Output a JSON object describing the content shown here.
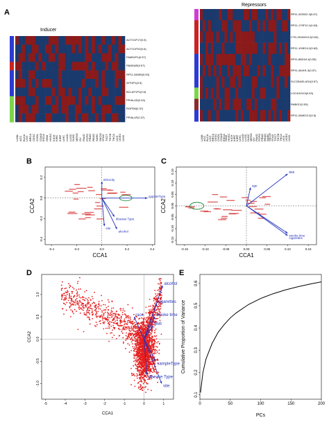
{
  "figure": {
    "panels": {
      "A": {
        "letter": "A",
        "inducer": {
          "title": "Inducer",
          "rows": [
            "ACTG1P17(0.5)",
            "ACTG1P22(0.6)",
            "FAM91P1(0.57)",
            "PANDAR(0.57)",
            "RP11-346E6(0.53)",
            "ATF4P1(0.5)",
            "BCLAF1P1(0.5)",
            "PPIAL4D(0.43)",
            "RGPD6(0.37)",
            "PPIAL4F(0.37)"
          ],
          "group_colors": [
            "#2b3bd4",
            "#2b3bd4",
            "#2b3bd4",
            "#cc2222",
            "#2b3bd4",
            "#2b3bd4",
            "#2b3bd4",
            "#7bd64a",
            "#7bd64a",
            "#7bd64a"
          ]
        },
        "repressor": {
          "title": "Repressors",
          "rows": [
            "RP11-325022.3(0.67)",
            "RP11-179F10.1(0.63)",
            "CTD-2515H24.2(0.63)",
            "RP11-109E24.2(0.63)",
            "RP11-86D18.1(0.53)",
            "RP11-464H1.3(0.57)",
            "SLC25A30-AS1(0.57)",
            "LOC401913(0.53)",
            "RABGC(0.53)",
            "RP11-266E23.2(0.5)"
          ],
          "group_colors": [
            "#d23bd4",
            "#cc2222",
            "#cc2222",
            "#cc2222",
            "#2b3bd4",
            "#2b3bd4",
            "#2b3bd4",
            "#7bd64a",
            "#8c2a2a",
            "#2b3bd4"
          ]
        },
        "cancer_types": [
          "LAML",
          "ACC",
          "BLCA",
          "LGG",
          "BRCA",
          "CESC",
          "CHOL",
          "COAD",
          "ESCA",
          "GBM",
          "HNSC",
          "KICH",
          "KIRC",
          "KIRP",
          "LIHC",
          "LUAD",
          "LUSC",
          "DLBC",
          "MESO",
          "OV",
          "PAAD",
          "PCPG",
          "PRAD",
          "READ",
          "SARC",
          "SKCM",
          "STAD",
          "TGCT",
          "THYM",
          "THCA",
          "UCS",
          "UCEC",
          "UVM"
        ],
        "heatmap_colors": {
          "high": "#8b1a1a",
          "low": "#1a3a6e"
        }
      },
      "B": {
        "letter": "B",
        "xlabel": "CCA1",
        "ylabel": "CCA2",
        "x_ticks": [
          "-0.4",
          "-0.2",
          "0.0",
          "0.2",
          "0.4"
        ],
        "y_ticks": [
          "-0.4",
          "-0.2",
          "0.0",
          "0.2"
        ],
        "vectors": [
          {
            "name": "ethnicity",
            "x": 0.0,
            "y": 0.16
          },
          {
            "name": "sampleType",
            "x": 0.36,
            "y": 0.0
          },
          {
            "name": "disease Type",
            "x": 0.1,
            "y": -0.18
          },
          {
            "name": "site",
            "x": 0.02,
            "y": -0.27
          },
          {
            "name": "alcohol",
            "x": 0.12,
            "y": -0.3
          }
        ]
      },
      "C": {
        "letter": "C",
        "xlabel": "CCA1",
        "ylabel": "CCA2",
        "x_ticks": [
          "-0.15",
          "-0.10",
          "-0.05",
          "0.00",
          "0.05",
          "0.10",
          "0.15"
        ],
        "y_ticks": [
          "-0.15",
          "-0.10",
          "-0.05",
          "0.00",
          "0.05",
          "0.10",
          "0.15"
        ],
        "vectors": [
          {
            "name": "BMI",
            "x": 0.1,
            "y": 0.14
          },
          {
            "name": "age",
            "x": 0.01,
            "y": 0.08
          },
          {
            "name": "smoke time",
            "x": 0.1,
            "y": -0.12
          },
          {
            "name": "cigarettes",
            "x": 0.1,
            "y": -0.13
          }
        ]
      },
      "D": {
        "letter": "D",
        "xlabel": "CCA1",
        "ylabel": "CCA2",
        "x_ticks": [
          "-5",
          "-4",
          "-3",
          "-2",
          "-1",
          "0",
          "1"
        ],
        "y_ticks": [
          "-1.0",
          "-0.5",
          "0.0",
          "0.5",
          "1.0"
        ],
        "vectors": [
          {
            "name": "alcohol",
            "x": 0.95,
            "y": 1.2
          },
          {
            "name": "cigarettes",
            "x": 0.65,
            "y": 0.8
          },
          {
            "name": "race",
            "x": -0.5,
            "y": 0.5
          },
          {
            "name": "smoke time",
            "x": 0.55,
            "y": 0.5
          },
          {
            "name": "BMI",
            "x": 0.45,
            "y": 0.3
          },
          {
            "name": "sampleType",
            "x": 0.6,
            "y": -0.5
          },
          {
            "name": "disease Type",
            "x": 0.15,
            "y": -0.8
          },
          {
            "name": "site",
            "x": 0.9,
            "y": -1.0
          }
        ]
      },
      "E": {
        "letter": "E",
        "xlabel": "PCs",
        "ylabel": "Cumulative Proportion of Variance",
        "x_ticks": [
          "0",
          "50",
          "100",
          "150",
          "200"
        ],
        "y_ticks": [
          "0.1",
          "0.2",
          "0.3",
          "0.4",
          "0.5",
          "0.6"
        ],
        "xlim": [
          0,
          200
        ],
        "ylim": [
          0.08,
          0.64
        ]
      }
    }
  },
  "chart_data": [
    {
      "type": "heatmap",
      "title": "Inducer",
      "rows": [
        "ACTG1P17(0.5)",
        "ACTG1P22(0.6)",
        "FAM91P1(0.57)",
        "PANDAR(0.57)",
        "RP11-346E6(0.53)",
        "ATF4P1(0.5)",
        "BCLAF1P1(0.5)",
        "PPIAL4D(0.43)",
        "RGPD6(0.37)",
        "PPIAL4F(0.37)"
      ],
      "columns": [
        "LAML",
        "ACC",
        "BLCA",
        "LGG",
        "BRCA",
        "CESC",
        "CHOL",
        "COAD",
        "ESCA",
        "GBM",
        "HNSC",
        "KICH",
        "KIRC",
        "KIRP",
        "LIHC",
        "LUAD",
        "LUSC",
        "DLBC",
        "MESO",
        "OV",
        "PAAD",
        "PCPG",
        "PRAD",
        "READ",
        "SARC",
        "SKCM",
        "STAD",
        "TGCT",
        "THYM",
        "THCA",
        "UCS",
        "UCEC",
        "UVM"
      ]
    },
    {
      "type": "heatmap",
      "title": "Repressors",
      "rows": [
        "RP11-325022.3(0.67)",
        "RP11-179F10.1(0.63)",
        "CTD-2515H24.2(0.63)",
        "RP11-109E24.2(0.63)",
        "RP11-86D18.1(0.53)",
        "RP11-464H1.3(0.57)",
        "SLC25A30-AS1(0.57)",
        "LOC401913(0.53)",
        "RABGC(0.53)",
        "RP11-266E23.2(0.5)"
      ],
      "columns": [
        "LAML",
        "ACC",
        "BLCA",
        "LGG",
        "BRCA",
        "CESC",
        "CHOL",
        "COAD",
        "ESCA",
        "GBM",
        "HNSC",
        "KICH",
        "KIRC",
        "KIRP",
        "LIHC",
        "LUAD",
        "LUSC",
        "DLBC",
        "MESO",
        "OV",
        "PAAD",
        "PCPG",
        "PRAD",
        "READ",
        "SARC",
        "SKCM",
        "STAD",
        "TGCT",
        "THYM",
        "THCA",
        "UCS",
        "UCEC",
        "UVM"
      ]
    },
    {
      "type": "line",
      "xlabel": "PCs",
      "ylabel": "Cumulative Proportion of Variance",
      "xlim": [
        0,
        200
      ],
      "ylim": [
        0.08,
        0.64
      ],
      "x": [
        1,
        5,
        10,
        20,
        30,
        40,
        50,
        60,
        80,
        100,
        120,
        140,
        160,
        180,
        200
      ],
      "values": [
        0.11,
        0.2,
        0.26,
        0.33,
        0.38,
        0.415,
        0.445,
        0.468,
        0.505,
        0.532,
        0.553,
        0.57,
        0.584,
        0.596,
        0.607
      ]
    }
  ]
}
